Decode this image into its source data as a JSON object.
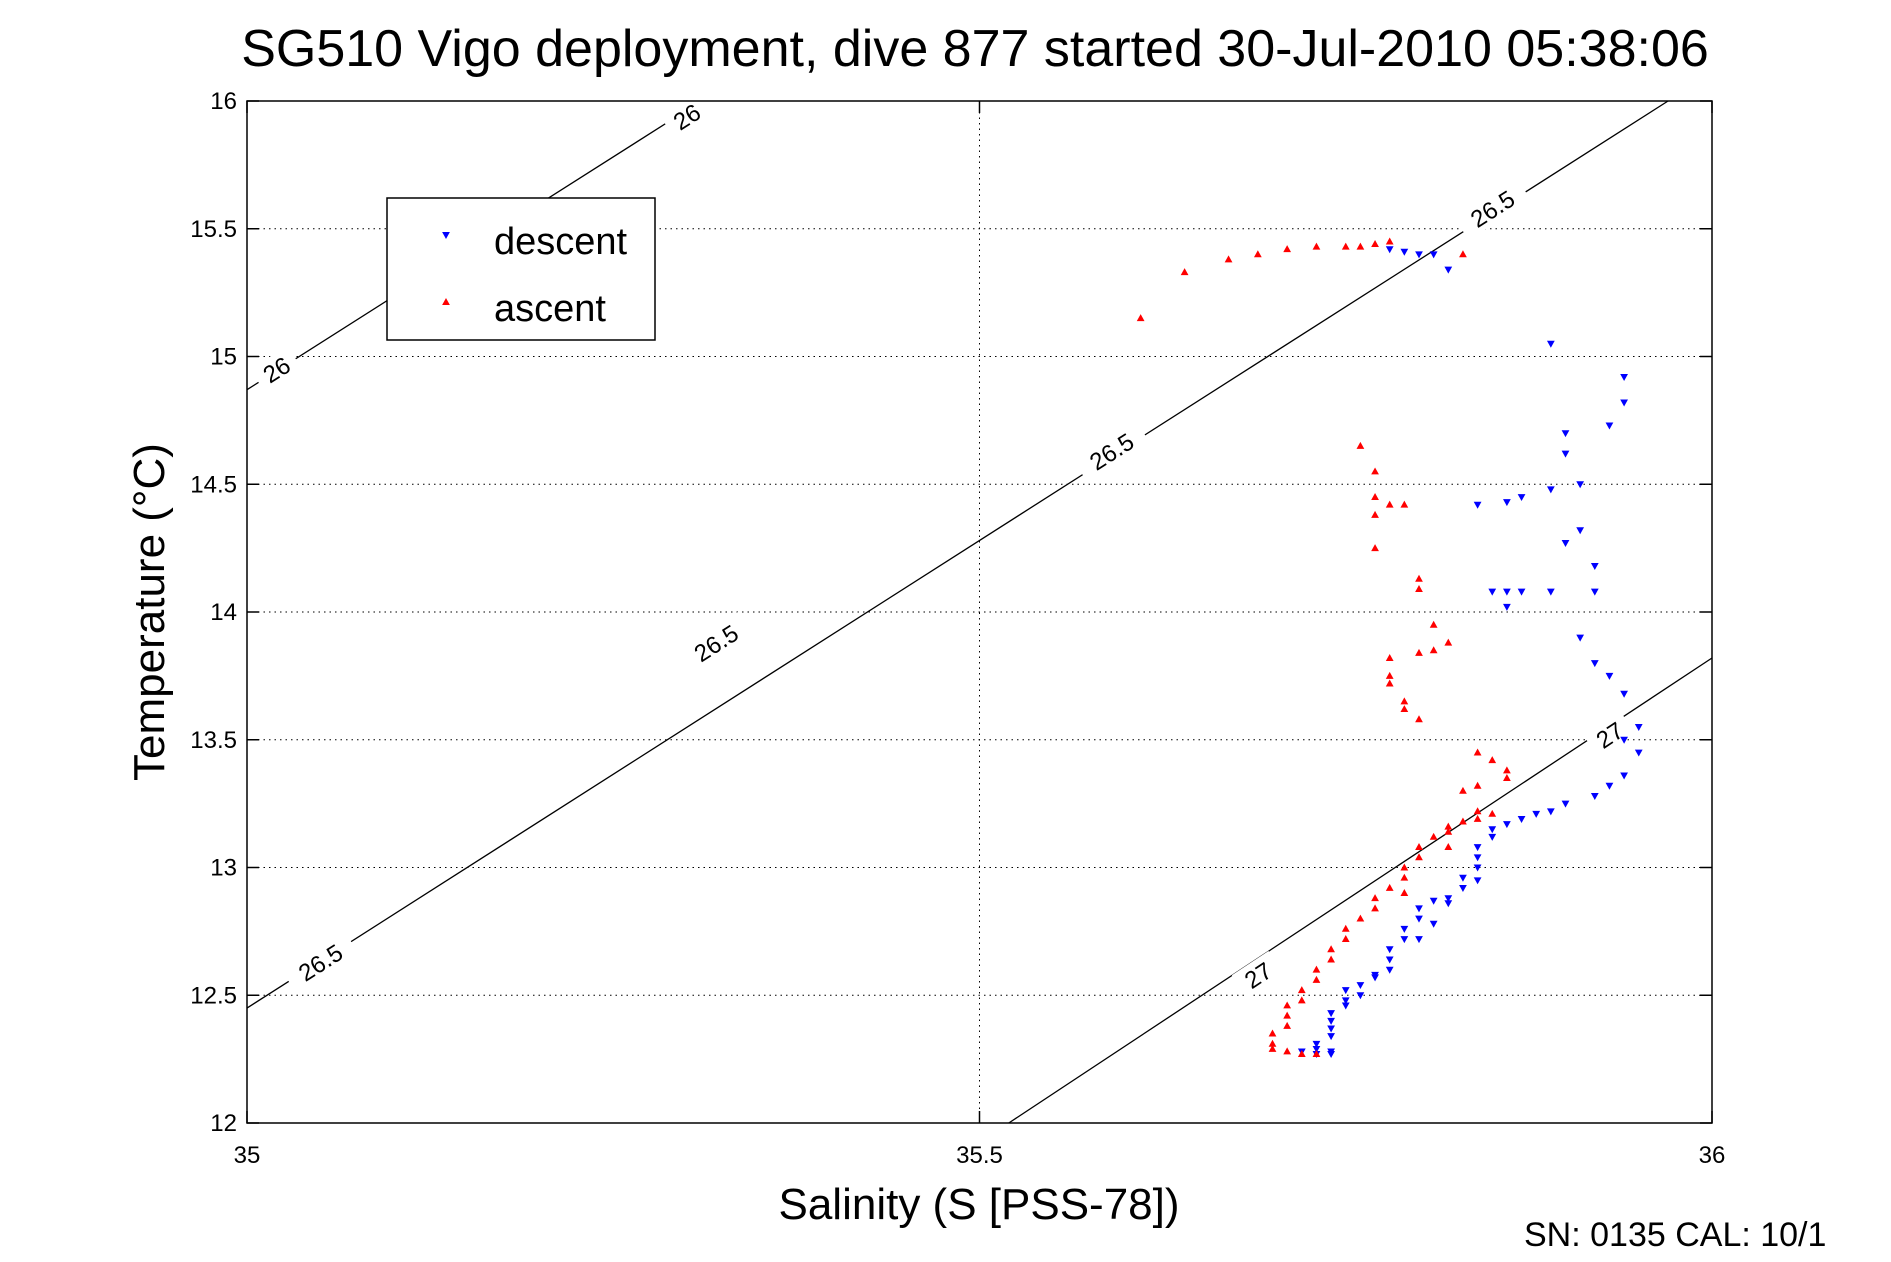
{
  "chart_data": {
    "type": "scatter",
    "title": "SG510 Vigo deployment, dive 877 started 30-Jul-2010 05:38:06",
    "xlabel": "Salinity (S [PSS-78])",
    "ylabel": "Temperature (°C)",
    "xlim": [
      35,
      36
    ],
    "ylim": [
      12,
      16
    ],
    "x_ticks": [
      "35",
      "35.5",
      "36"
    ],
    "y_ticks": [
      "12",
      "12.5",
      "13",
      "13.5",
      "14",
      "14.5",
      "15",
      "15.5",
      "16"
    ],
    "grid": true,
    "legend_position": "top-left",
    "footer": "SN: 0135  CAL: 10/1",
    "series": [
      {
        "name": "descent",
        "color": "#0000ff",
        "marker": "triangle-down",
        "points": [
          [
            35.78,
            15.42
          ],
          [
            35.79,
            15.41
          ],
          [
            35.8,
            15.4
          ],
          [
            35.81,
            15.4
          ],
          [
            35.82,
            15.34
          ],
          [
            35.89,
            15.05
          ],
          [
            35.94,
            14.92
          ],
          [
            35.94,
            14.82
          ],
          [
            35.93,
            14.73
          ],
          [
            35.9,
            14.7
          ],
          [
            35.9,
            14.62
          ],
          [
            35.91,
            14.5
          ],
          [
            35.89,
            14.48
          ],
          [
            35.87,
            14.45
          ],
          [
            35.86,
            14.43
          ],
          [
            35.84,
            14.42
          ],
          [
            35.91,
            14.32
          ],
          [
            35.9,
            14.27
          ],
          [
            35.92,
            14.18
          ],
          [
            35.85,
            14.08
          ],
          [
            35.86,
            14.08
          ],
          [
            35.87,
            14.08
          ],
          [
            35.89,
            14.08
          ],
          [
            35.92,
            14.08
          ],
          [
            35.86,
            14.02
          ],
          [
            35.91,
            13.9
          ],
          [
            35.92,
            13.8
          ],
          [
            35.93,
            13.75
          ],
          [
            35.94,
            13.68
          ],
          [
            35.95,
            13.55
          ],
          [
            35.94,
            13.5
          ],
          [
            35.95,
            13.45
          ],
          [
            35.94,
            13.36
          ],
          [
            35.93,
            13.32
          ],
          [
            35.92,
            13.28
          ],
          [
            35.9,
            13.25
          ],
          [
            35.89,
            13.22
          ],
          [
            35.88,
            13.21
          ],
          [
            35.87,
            13.19
          ],
          [
            35.86,
            13.17
          ],
          [
            35.85,
            13.15
          ],
          [
            35.85,
            13.12
          ],
          [
            35.84,
            13.08
          ],
          [
            35.84,
            13.04
          ],
          [
            35.84,
            13.0
          ],
          [
            35.83,
            12.96
          ],
          [
            35.83,
            12.92
          ],
          [
            35.82,
            12.88
          ],
          [
            35.81,
            12.87
          ],
          [
            35.8,
            12.84
          ],
          [
            35.8,
            12.8
          ],
          [
            35.79,
            12.76
          ],
          [
            35.79,
            12.72
          ],
          [
            35.78,
            12.68
          ],
          [
            35.78,
            12.64
          ],
          [
            35.78,
            12.6
          ],
          [
            35.77,
            12.57
          ],
          [
            35.76,
            12.54
          ],
          [
            35.76,
            12.5
          ],
          [
            35.75,
            12.48
          ],
          [
            35.75,
            12.46
          ],
          [
            35.74,
            12.43
          ],
          [
            35.74,
            12.4
          ],
          [
            35.74,
            12.37
          ],
          [
            35.74,
            12.34
          ],
          [
            35.73,
            12.31
          ],
          [
            35.73,
            12.29
          ],
          [
            35.74,
            12.28
          ],
          [
            35.74,
            12.27
          ],
          [
            35.73,
            12.27
          ],
          [
            35.72,
            12.28
          ],
          [
            35.75,
            12.52
          ],
          [
            35.77,
            12.58
          ],
          [
            35.8,
            12.72
          ],
          [
            35.81,
            12.78
          ],
          [
            35.82,
            12.86
          ],
          [
            35.84,
            12.95
          ]
        ]
      },
      {
        "name": "ascent",
        "color": "#ff0000",
        "marker": "triangle-up",
        "points": [
          [
            35.61,
            15.15
          ],
          [
            35.64,
            15.33
          ],
          [
            35.67,
            15.38
          ],
          [
            35.69,
            15.4
          ],
          [
            35.71,
            15.42
          ],
          [
            35.73,
            15.43
          ],
          [
            35.75,
            15.43
          ],
          [
            35.76,
            15.43
          ],
          [
            35.77,
            15.44
          ],
          [
            35.78,
            15.45
          ],
          [
            35.83,
            15.4
          ],
          [
            35.76,
            14.65
          ],
          [
            35.77,
            14.55
          ],
          [
            35.77,
            14.45
          ],
          [
            35.78,
            14.42
          ],
          [
            35.79,
            14.42
          ],
          [
            35.77,
            14.38
          ],
          [
            35.77,
            14.25
          ],
          [
            35.8,
            14.13
          ],
          [
            35.8,
            14.09
          ],
          [
            35.81,
            13.95
          ],
          [
            35.81,
            13.85
          ],
          [
            35.82,
            13.88
          ],
          [
            35.8,
            13.84
          ],
          [
            35.78,
            13.82
          ],
          [
            35.78,
            13.75
          ],
          [
            35.78,
            13.72
          ],
          [
            35.79,
            13.65
          ],
          [
            35.79,
            13.62
          ],
          [
            35.8,
            13.58
          ],
          [
            35.84,
            13.45
          ],
          [
            35.85,
            13.42
          ],
          [
            35.86,
            13.38
          ],
          [
            35.86,
            13.35
          ],
          [
            35.84,
            13.32
          ],
          [
            35.83,
            13.3
          ],
          [
            35.85,
            13.21
          ],
          [
            35.84,
            13.22
          ],
          [
            35.84,
            13.19
          ],
          [
            35.83,
            13.18
          ],
          [
            35.82,
            13.16
          ],
          [
            35.82,
            13.14
          ],
          [
            35.81,
            13.12
          ],
          [
            35.8,
            13.08
          ],
          [
            35.8,
            13.04
          ],
          [
            35.79,
            13.0
          ],
          [
            35.79,
            12.96
          ],
          [
            35.78,
            12.92
          ],
          [
            35.77,
            12.88
          ],
          [
            35.77,
            12.84
          ],
          [
            35.76,
            12.8
          ],
          [
            35.75,
            12.76
          ],
          [
            35.75,
            12.72
          ],
          [
            35.74,
            12.68
          ],
          [
            35.74,
            12.64
          ],
          [
            35.73,
            12.6
          ],
          [
            35.73,
            12.56
          ],
          [
            35.72,
            12.52
          ],
          [
            35.72,
            12.48
          ],
          [
            35.71,
            12.46
          ],
          [
            35.71,
            12.42
          ],
          [
            35.71,
            12.38
          ],
          [
            35.7,
            12.35
          ],
          [
            35.7,
            12.31
          ],
          [
            35.7,
            12.29
          ],
          [
            35.71,
            12.28
          ],
          [
            35.72,
            12.27
          ],
          [
            35.73,
            12.27
          ],
          [
            35.79,
            12.9
          ],
          [
            35.82,
            13.08
          ]
        ]
      }
    ],
    "contours": [
      {
        "label": "26",
        "points": [
          [
            35.0,
            14.87
          ],
          [
            35.31,
            16.0
          ]
        ],
        "label_positions": [
          [
            35.02,
            14.95
          ],
          [
            35.3,
            15.94
          ]
        ]
      },
      {
        "label": "26.5",
        "points": [
          [
            35.0,
            12.45
          ],
          [
            35.97,
            16.0
          ]
        ],
        "label_positions": [
          [
            35.05,
            12.63
          ],
          [
            35.32,
            13.88
          ],
          [
            35.59,
            14.63
          ],
          [
            35.85,
            15.58
          ]
        ]
      },
      {
        "label": "27",
        "points": [
          [
            35.52,
            12.0
          ],
          [
            36.0,
            13.82
          ]
        ],
        "label_positions": [
          [
            35.69,
            12.58
          ],
          [
            35.93,
            13.52
          ]
        ]
      }
    ]
  }
}
